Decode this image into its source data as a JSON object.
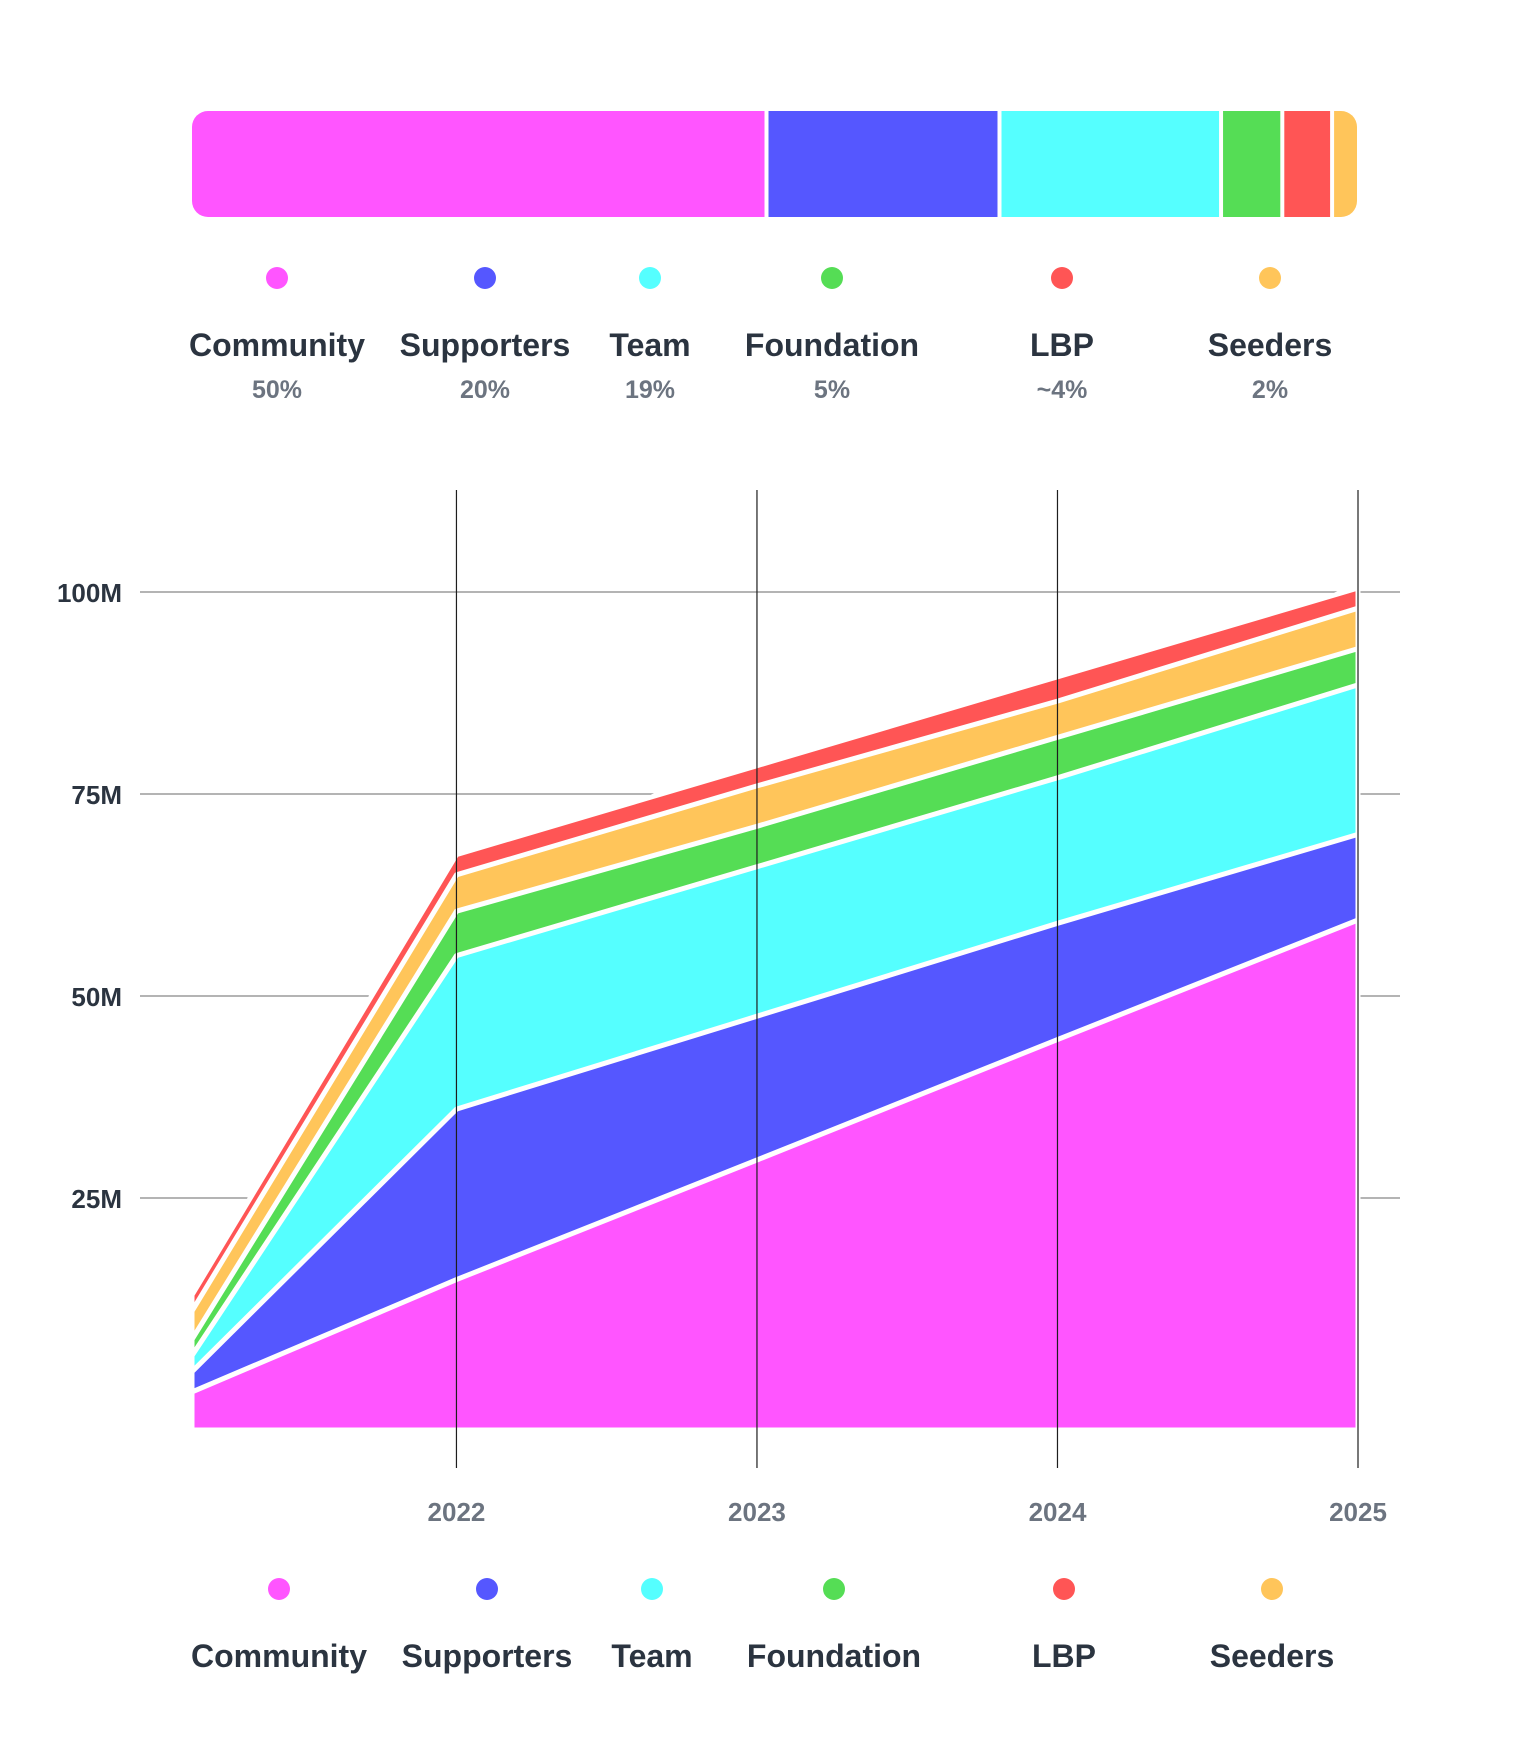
{
  "distribution": {
    "items": [
      {
        "name": "Community",
        "percent_label": "50%",
        "share": 50,
        "color": "#ff55ff"
      },
      {
        "name": "Supporters",
        "percent_label": "20%",
        "share": 20,
        "color": "#5557ff"
      },
      {
        "name": "Team",
        "percent_label": "19%",
        "share": 19,
        "color": "#55ffff"
      },
      {
        "name": "Foundation",
        "percent_label": "5%",
        "share": 5,
        "color": "#55dd55"
      },
      {
        "name": "LBP",
        "percent_label": "~4%",
        "share": 4,
        "color": "#ff5555"
      },
      {
        "name": "Seeders",
        "percent_label": "2%",
        "share": 2,
        "color": "#ffc55a"
      }
    ]
  },
  "chart_data": {
    "type": "area",
    "stacked": true,
    "x": [
      2021.12,
      2022,
      2023,
      2024,
      2025
    ],
    "x_ticks": [
      "2022",
      "2023",
      "2024",
      "2025"
    ],
    "y_ticks": [
      "25M",
      "50M",
      "75M",
      "100M"
    ],
    "ylim": [
      0,
      110
    ],
    "grid": true,
    "legend_position": "bottom",
    "series": [
      {
        "name": "Community",
        "color": "#ff55ff",
        "values": [
          1,
          14.9,
          29.7,
          44.6,
          59.4
        ]
      },
      {
        "name": "Supporters",
        "color": "#5557ff",
        "values": [
          3.5,
          36,
          47.5,
          59,
          70
        ]
      },
      {
        "name": "Team",
        "color": "#55ffff",
        "values": [
          5.5,
          55,
          66,
          77,
          88.5
        ]
      },
      {
        "name": "Foundation",
        "color": "#55dd55",
        "values": [
          7.5,
          60.5,
          71,
          82,
          93
        ]
      },
      {
        "name": "Seeders",
        "color": "#ffc55a",
        "values": [
          11,
          65,
          76,
          86.5,
          98
        ]
      },
      {
        "name": "LBP",
        "color": "#ff5555",
        "values": [
          13,
          67.5,
          78.5,
          89.5,
          100.5
        ]
      }
    ]
  },
  "bottom_legend": {
    "items": [
      {
        "name": "Community",
        "color": "#ff55ff"
      },
      {
        "name": "Supporters",
        "color": "#5557ff"
      },
      {
        "name": "Team",
        "color": "#55ffff"
      },
      {
        "name": "Foundation",
        "color": "#55dd55"
      },
      {
        "name": "LBP",
        "color": "#ff5555"
      },
      {
        "name": "Seeders",
        "color": "#ffc55a"
      }
    ]
  }
}
